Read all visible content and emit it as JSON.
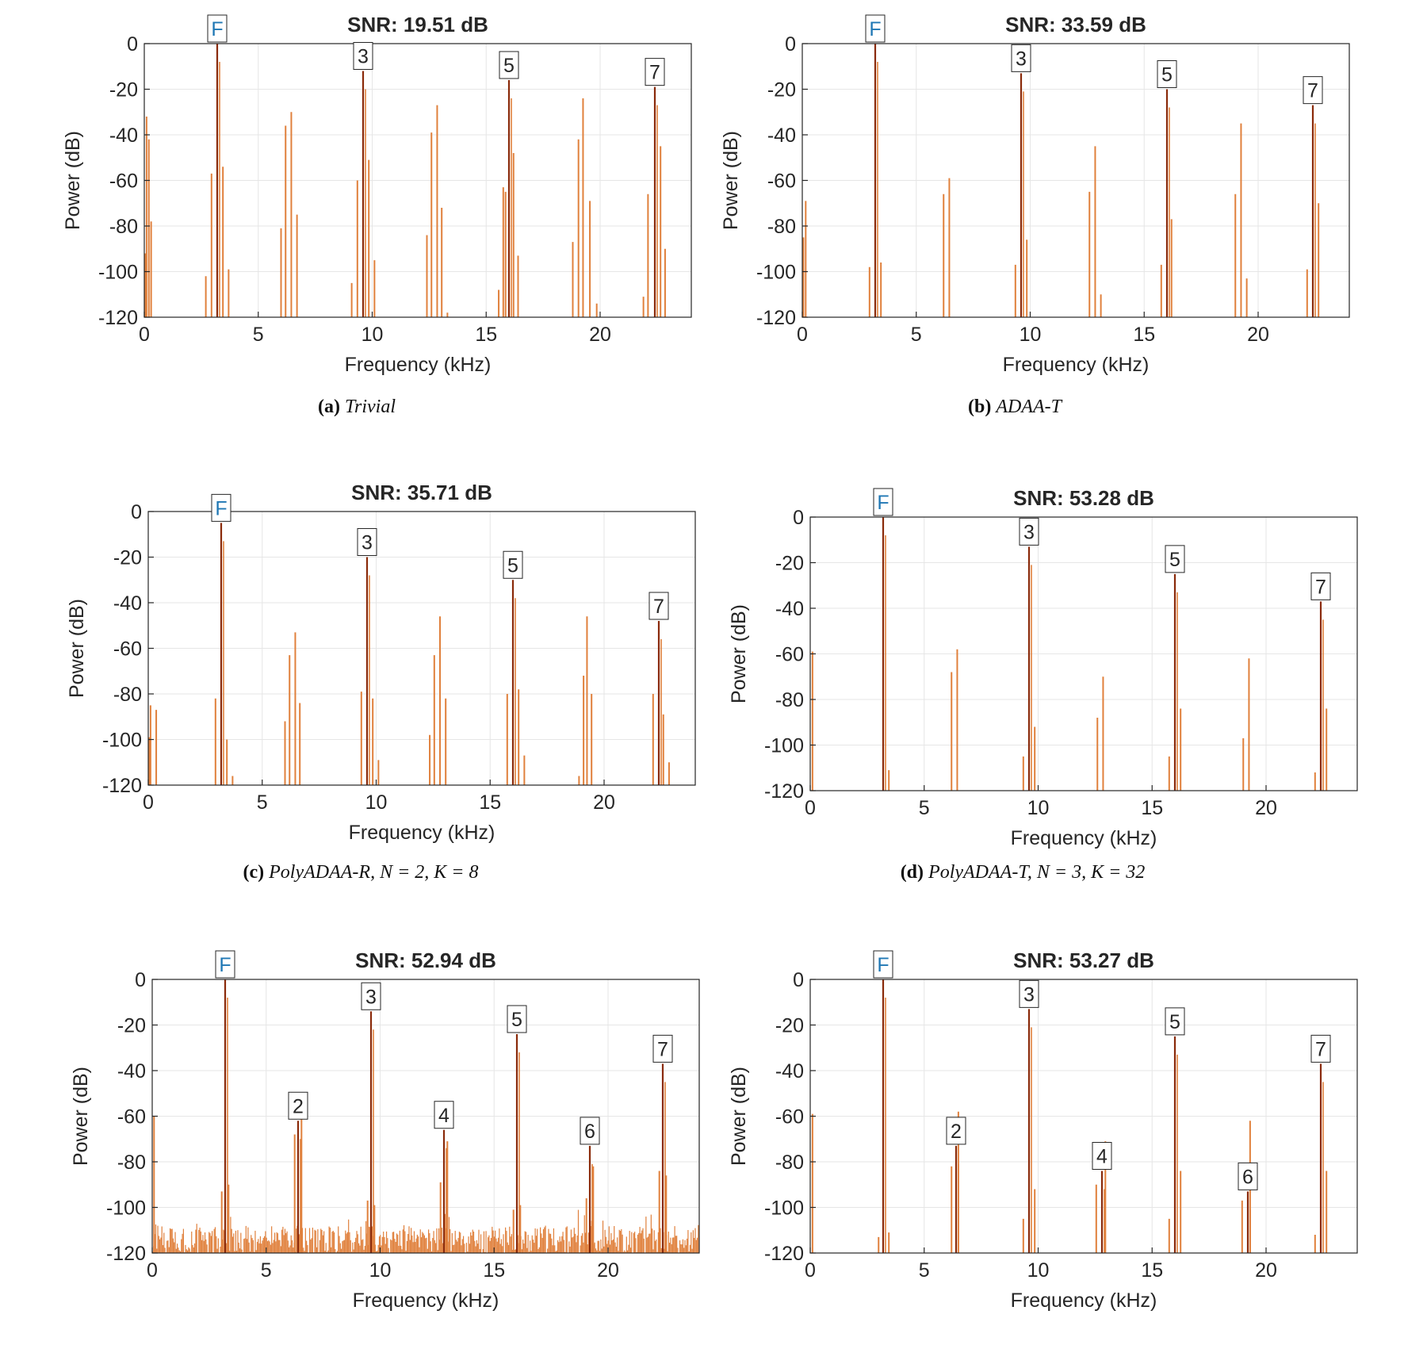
{
  "chart_data": [
    {
      "type": "bar",
      "title": "SNR:  19.51 dB",
      "xlabel": "Frequency (kHz)",
      "ylabel": "Power (dB)",
      "xlim": [
        0,
        24
      ],
      "ylim": [
        -120,
        0
      ],
      "xticks": [
        "0",
        "5",
        "10",
        "15",
        "20"
      ],
      "yticks": [
        "0",
        "-20",
        "-40",
        "-60",
        "-80",
        "-100",
        "-120"
      ],
      "grid": true,
      "caption": {
        "prefix": "(a)",
        "text": "Trivial"
      },
      "harmonics": [
        {
          "label": "F",
          "x": 3.2,
          "y": 0
        },
        {
          "label": "3",
          "x": 9.6,
          "y": -12
        },
        {
          "label": "5",
          "x": 16.0,
          "y": -16
        },
        {
          "label": "7",
          "x": 22.4,
          "y": -19
        }
      ],
      "spurs": {
        "x": [
          0.05,
          0.1,
          0.2,
          0.3,
          2.7,
          2.95,
          3.45,
          3.7,
          6.0,
          6.2,
          6.45,
          6.7,
          9.1,
          9.35,
          9.85,
          10.1,
          12.4,
          12.6,
          12.85,
          13.05,
          13.3,
          15.55,
          15.75,
          15.85,
          16.2,
          16.4,
          18.8,
          19.05,
          19.25,
          19.55,
          19.85,
          21.9,
          22.1,
          22.65,
          22.85
        ],
        "y": [
          -92,
          -32,
          -42,
          -78,
          -102,
          -57,
          -54,
          -99,
          -81,
          -36,
          -30,
          -75,
          -105,
          -60,
          -51,
          -95,
          -84,
          -39,
          -27,
          -72,
          -118,
          -108,
          -63,
          -65,
          -48,
          -93,
          -87,
          -42,
          -24,
          -69,
          -114,
          -111,
          -66,
          -45,
          -90
        ]
      },
      "noise_floor": false
    },
    {
      "type": "bar",
      "title": "SNR:  33.59 dB",
      "xlabel": "Frequency (kHz)",
      "ylabel": "Power (dB)",
      "xlim": [
        0,
        24
      ],
      "ylim": [
        -120,
        0
      ],
      "xticks": [
        "0",
        "5",
        "10",
        "15",
        "20"
      ],
      "yticks": [
        "0",
        "-20",
        "-40",
        "-60",
        "-80",
        "-100",
        "-120"
      ],
      "grid": true,
      "caption": {
        "prefix": "(b)",
        "text": "ADAA-T"
      },
      "harmonics": [
        {
          "label": "F",
          "x": 3.2,
          "y": 0
        },
        {
          "label": "3",
          "x": 9.6,
          "y": -13
        },
        {
          "label": "5",
          "x": 16.0,
          "y": -20
        },
        {
          "label": "7",
          "x": 22.4,
          "y": -27
        }
      ],
      "spurs": {
        "x": [
          0.05,
          0.15,
          2.95,
          3.45,
          6.2,
          6.45,
          9.35,
          9.85,
          12.6,
          12.85,
          13.1,
          15.75,
          16.2,
          19.0,
          19.25,
          19.5,
          22.15,
          22.65
        ],
        "y": [
          -85,
          -69,
          -98,
          -96,
          -66,
          -59,
          -97,
          -86,
          -65,
          -45,
          -110,
          -97,
          -77,
          -66,
          -35,
          -103,
          -99,
          -70
        ]
      },
      "noise_floor": false
    },
    {
      "type": "bar",
      "title": "SNR:  35.71 dB",
      "xlabel": "Frequency (kHz)",
      "ylabel": "Power (dB)",
      "xlim": [
        0,
        24
      ],
      "ylim": [
        -120,
        0
      ],
      "xticks": [
        "0",
        "5",
        "10",
        "15",
        "20"
      ],
      "yticks": [
        "0",
        "-20",
        "-40",
        "-60",
        "-80",
        "-100",
        "-120"
      ],
      "grid": true,
      "caption": {
        "prefix": "(c)",
        "text": "PolyADAA-R, ",
        "math": "N = 2, K = 8"
      },
      "harmonics": [
        {
          "label": "F",
          "x": 3.2,
          "y": -5
        },
        {
          "label": "3",
          "x": 9.6,
          "y": -20
        },
        {
          "label": "5",
          "x": 16.0,
          "y": -30
        },
        {
          "label": "7",
          "x": 22.4,
          "y": -48
        }
      ],
      "spurs": {
        "x": [
          0.05,
          0.1,
          0.35,
          2.95,
          3.45,
          3.7,
          6.0,
          6.2,
          6.45,
          6.65,
          9.35,
          9.85,
          10.1,
          12.35,
          12.55,
          12.8,
          13.05,
          15.75,
          16.25,
          16.5,
          18.9,
          19.1,
          19.25,
          19.45,
          22.15,
          22.6,
          22.85
        ],
        "y": [
          -99,
          -85,
          -87,
          -82,
          -100,
          -116,
          -92,
          -63,
          -53,
          -84,
          -79,
          -82,
          -109,
          -98,
          -63,
          -46,
          -82,
          -80,
          -78,
          -107,
          -116,
          -72,
          -46,
          -80,
          -80,
          -89,
          -110
        ]
      },
      "noise_floor": false
    },
    {
      "type": "bar",
      "title": "SNR:  53.28 dB",
      "xlabel": "Frequency (kHz)",
      "ylabel": "Power (dB)",
      "xlim": [
        0,
        24
      ],
      "ylim": [
        -120,
        0
      ],
      "xticks": [
        "0",
        "5",
        "10",
        "15",
        "20"
      ],
      "yticks": [
        "0",
        "-20",
        "-40",
        "-60",
        "-80",
        "-100",
        "-120"
      ],
      "grid": true,
      "caption": {
        "prefix": "(d)",
        "text": "PolyADAA-T, ",
        "math": "N = 3, K = 32"
      },
      "harmonics": [
        {
          "label": "F",
          "x": 3.2,
          "y": 0
        },
        {
          "label": "3",
          "x": 9.6,
          "y": -13
        },
        {
          "label": "5",
          "x": 16.0,
          "y": -25
        },
        {
          "label": "7",
          "x": 22.4,
          "y": -37
        }
      ],
      "spurs": {
        "x": [
          0.1,
          3.45,
          6.2,
          6.45,
          9.35,
          9.85,
          12.6,
          12.85,
          15.75,
          16.25,
          19.0,
          19.25,
          22.15,
          22.65
        ],
        "y": [
          -59,
          -111,
          -68,
          -58,
          -105,
          -92,
          -88,
          -70,
          -105,
          -84,
          -97,
          -62,
          -112,
          -84
        ]
      },
      "noise_floor": false
    },
    {
      "type": "bar",
      "title": "SNR:  52.94 dB",
      "xlabel": "Frequency (kHz)",
      "ylabel": "Power (dB)",
      "xlim": [
        0,
        24
      ],
      "ylim": [
        -120,
        0
      ],
      "xticks": [
        "0",
        "5",
        "10",
        "15",
        "20"
      ],
      "yticks": [
        "0",
        "-20",
        "-40",
        "-60",
        "-80",
        "-100",
        "-120"
      ],
      "grid": true,
      "caption": null,
      "harmonics": [
        {
          "label": "F",
          "x": 3.2,
          "y": 0
        },
        {
          "label": "2",
          "x": 6.4,
          "y": -62
        },
        {
          "label": "3",
          "x": 9.6,
          "y": -14
        },
        {
          "label": "4",
          "x": 12.8,
          "y": -66
        },
        {
          "label": "5",
          "x": 16.0,
          "y": -24
        },
        {
          "label": "6",
          "x": 19.2,
          "y": -73
        },
        {
          "label": "7",
          "x": 22.4,
          "y": -37
        }
      ],
      "spurs": {
        "x": [
          0.08,
          3.05,
          3.35,
          6.25,
          6.55,
          9.45,
          9.75,
          12.65,
          12.95,
          15.85,
          16.15,
          19.05,
          19.35,
          22.25,
          22.55
        ],
        "y": [
          -60,
          -93,
          -90,
          -68,
          -60,
          -97,
          -99,
          -89,
          -71,
          -101,
          -99,
          -96,
          -82,
          -84,
          -86
        ]
      },
      "noise_floor": true
    },
    {
      "type": "bar",
      "title": "SNR:  53.27 dB",
      "xlabel": "Frequency (kHz)",
      "ylabel": "Power (dB)",
      "xlim": [
        0,
        24
      ],
      "ylim": [
        -120,
        0
      ],
      "xticks": [
        "0",
        "5",
        "10",
        "15",
        "20"
      ],
      "yticks": [
        "0",
        "-20",
        "-40",
        "-60",
        "-80",
        "-100",
        "-120"
      ],
      "grid": true,
      "caption": null,
      "harmonics": [
        {
          "label": "F",
          "x": 3.2,
          "y": 0
        },
        {
          "label": "2",
          "x": 6.4,
          "y": -73
        },
        {
          "label": "3",
          "x": 9.6,
          "y": -13
        },
        {
          "label": "4",
          "x": 12.8,
          "y": -84
        },
        {
          "label": "5",
          "x": 16.0,
          "y": -25
        },
        {
          "label": "6",
          "x": 19.2,
          "y": -93
        },
        {
          "label": "7",
          "x": 22.4,
          "y": -37
        }
      ],
      "spurs": {
        "x": [
          0.1,
          3.0,
          3.45,
          6.2,
          6.5,
          9.35,
          9.85,
          12.55,
          12.95,
          15.75,
          16.25,
          18.95,
          19.3,
          22.15,
          22.65
        ],
        "y": [
          -59,
          -113,
          -111,
          -82,
          -58,
          -105,
          -92,
          -90,
          -71,
          -105,
          -84,
          -97,
          -62,
          -112,
          -84
        ]
      },
      "noise_floor": false
    }
  ]
}
